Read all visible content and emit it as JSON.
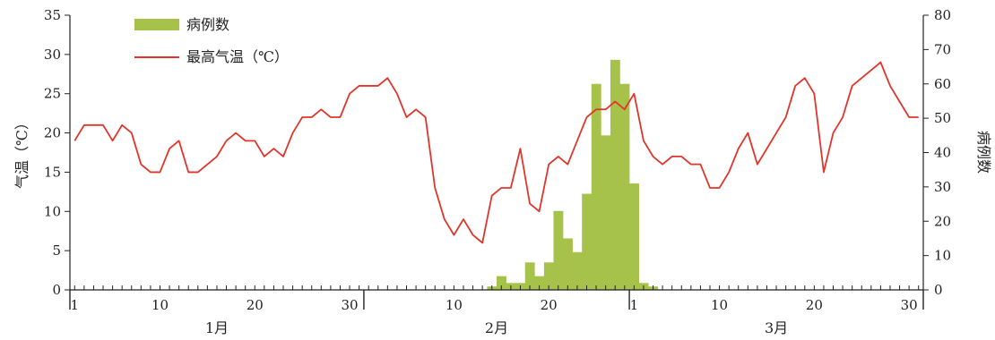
{
  "chart_data": {
    "type": "bar+line",
    "title": "",
    "x_axis": {
      "day_ticks": [
        "1",
        "10",
        "20",
        "30",
        "10",
        "20",
        "1",
        "10",
        "20",
        "30"
      ],
      "months": [
        "1月",
        "2月",
        "3月"
      ],
      "days_per_month": [
        31,
        28,
        31
      ]
    },
    "y_left": {
      "label": "气温（℃）",
      "ylim": [
        0,
        35
      ],
      "ticks": [
        0,
        5,
        10,
        15,
        20,
        25,
        30,
        35
      ]
    },
    "y_right": {
      "label": "病例数",
      "ylim": [
        0,
        80
      ],
      "ticks": [
        0,
        10,
        20,
        30,
        40,
        50,
        60,
        70,
        80
      ]
    },
    "legend": {
      "placement": "top-left",
      "bar_label": "病例数",
      "line_label": "最高气温（℃）"
    },
    "colors": {
      "bar": "#a7c24a",
      "line": "#e0352b",
      "axis": "#222222"
    },
    "series": [
      {
        "name": "最高气温（℃）",
        "axis": "left",
        "type": "line",
        "x": [
          1,
          2,
          3,
          4,
          5,
          6,
          7,
          8,
          9,
          10,
          11,
          12,
          13,
          14,
          15,
          16,
          17,
          18,
          19,
          20,
          21,
          22,
          23,
          24,
          25,
          26,
          27,
          28,
          29,
          30,
          31,
          32,
          33,
          34,
          35,
          36,
          37,
          38,
          39,
          40,
          41,
          42,
          43,
          44,
          45,
          46,
          47,
          48,
          49,
          50,
          51,
          52,
          53,
          54,
          55,
          56,
          57,
          58,
          59,
          60,
          61,
          62,
          63,
          64,
          65,
          66,
          67,
          68,
          69,
          70,
          71,
          72,
          73,
          74,
          75,
          76,
          77,
          78,
          79,
          80,
          81,
          82,
          83,
          84,
          85,
          86,
          87,
          88,
          89,
          90
        ],
        "values": [
          19,
          21,
          21,
          21,
          19,
          21,
          20,
          16,
          15,
          15,
          18,
          19,
          15,
          15,
          16,
          17,
          19,
          20,
          19,
          19,
          17,
          18,
          17,
          20,
          22,
          22,
          23,
          22,
          22,
          25,
          26,
          26,
          26,
          27,
          25,
          22,
          23,
          22,
          13,
          9,
          7,
          9,
          7,
          6,
          12,
          13,
          13,
          18,
          11,
          10,
          16,
          17,
          16,
          19,
          22,
          23,
          23,
          24,
          23,
          25,
          19,
          17,
          16,
          17,
          17,
          16,
          16,
          13,
          13,
          15,
          18,
          20,
          16,
          18,
          20,
          22,
          26,
          27,
          25,
          15,
          20,
          22,
          26,
          27,
          28,
          29,
          26,
          24,
          22,
          22
        ]
      },
      {
        "name": "病例数",
        "axis": "right",
        "type": "bar",
        "x": [
          45,
          46,
          47,
          48,
          49,
          50,
          51,
          52,
          53,
          54,
          55,
          56,
          57,
          58,
          59,
          60,
          61,
          62
        ],
        "values": [
          1,
          4,
          2,
          2,
          8,
          4,
          8,
          23,
          15,
          11,
          28,
          60,
          45,
          67,
          60,
          31,
          2,
          1
        ]
      }
    ]
  }
}
